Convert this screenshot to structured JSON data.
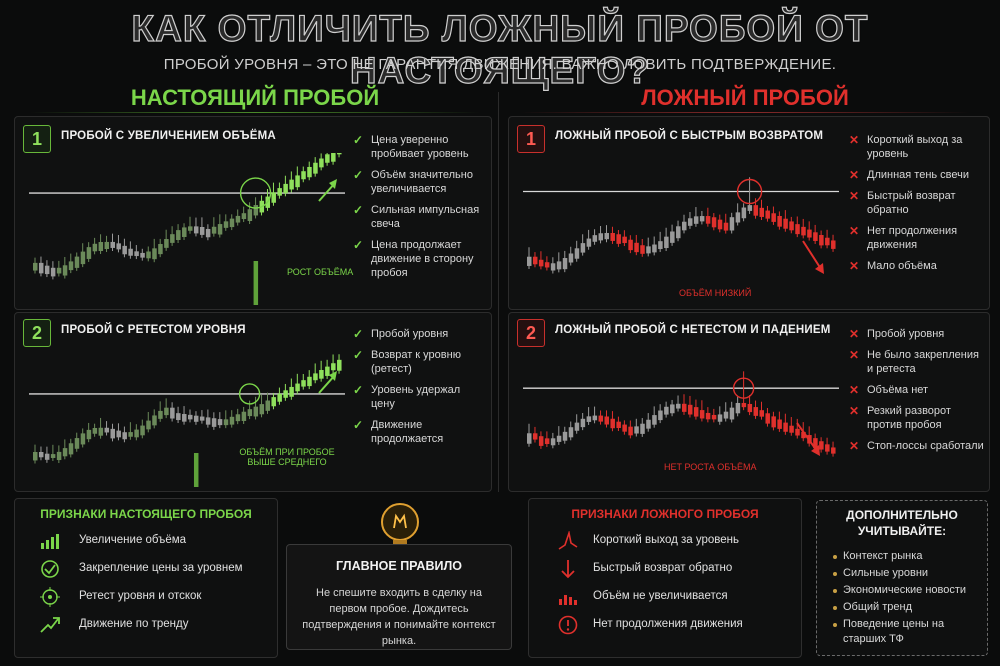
{
  "header": {
    "title": "КАК ОТЛИЧИТЬ ЛОЖНЫЙ ПРОБОЙ ОТ НАСТОЯЩЕГО?",
    "subtitle": "ПРОБОЙ УРОВНЯ – ЭТО НЕ ГАРАНТИЯ ДВИЖЕНИЯ. ВАЖНО ЛОВИТЬ ПОДТВЕРЖДЕНИЕ."
  },
  "true_breakout": {
    "heading": "НАСТОЯЩИЙ ПРОБОЙ",
    "panels": [
      {
        "number": "1",
        "title": "ПРОБОЙ С УВЕЛИЧЕНИЕМ ОБЪЁМА",
        "volume_label": "РОСТ ОБЪЁМА",
        "points": [
          "Цена уверенно пробивает уровень",
          "Объём значительно увеличивается",
          "Сильная импульсная свеча",
          "Цена продолжает движение в сторону пробоя"
        ]
      },
      {
        "number": "2",
        "title": "ПРОБОЙ С РЕТЕСТОМ УРОВНЯ",
        "volume_label": "ОБЪЁМ ПРИ ПРОБОЕ ВЫШЕ СРЕДНЕГО",
        "points": [
          "Пробой уровня",
          "Возврат к уровню (ретест)",
          "Уровень удержал цену",
          "Движение продолжается"
        ]
      }
    ]
  },
  "false_breakout": {
    "heading": "ЛОЖНЫЙ ПРОБОЙ",
    "panels": [
      {
        "number": "1",
        "title": "ЛОЖНЫЙ ПРОБОЙ С БЫСТРЫМ ВОЗВРАТОМ",
        "volume_label": "ОБЪЁМ НИЗКИЙ",
        "points": [
          "Короткий выход за уровень",
          "Длинная тень свечи",
          "Быстрый возврат обратно",
          "Нет продолжения движения",
          "Мало объёма"
        ]
      },
      {
        "number": "2",
        "title": "ЛОЖНЫЙ ПРОБОЙ С НЕТЕСТОМ И ПАДЕНИЕМ",
        "volume_label": "НЕТ РОСТА ОБЪЁМА",
        "points": [
          "Пробой уровня",
          "Не было закрепления и ретеста",
          "Объёма нет",
          "Резкий разворот против пробоя",
          "Стоп-лоссы сработали"
        ]
      }
    ]
  },
  "signs_true": {
    "title": "ПРИЗНАКИ НАСТОЯЩЕГО ПРОБОЯ",
    "items": [
      {
        "icon": "volume-bars-icon",
        "label": "Увеличение объёма"
      },
      {
        "icon": "check-circle-icon",
        "label": "Закрепление цены за уровнем"
      },
      {
        "icon": "target-icon",
        "label": "Ретест уровня и отскок"
      },
      {
        "icon": "trend-arrow-icon",
        "label": "Движение по тренду"
      }
    ]
  },
  "main_rule": {
    "icon": "lightbulb-icon",
    "title": "ГЛАВНОЕ ПРАВИЛО",
    "text": "Не спешите входить в сделку на первом пробое. Дождитесь подтверждения и понимайте контекст рынка."
  },
  "signs_false": {
    "title": "ПРИЗНАКИ ЛОЖНОГО ПРОБОЯ",
    "items": [
      {
        "icon": "spike-icon",
        "label": "Короткий выход за уровень"
      },
      {
        "icon": "down-arrow-icon",
        "label": "Быстрый возврат обратно"
      },
      {
        "icon": "low-volume-icon",
        "label": "Объём не увеличивается"
      },
      {
        "icon": "warning-icon",
        "label": "Нет продолжения движения"
      }
    ]
  },
  "extra": {
    "title": "ДОПОЛНИТЕЛЬНО УЧИТЫВАЙТЕ:",
    "items": [
      "Контекст рынка",
      "Сильные уровни",
      "Экономические новости",
      "Общий тренд",
      "Поведение цены на старших ТФ"
    ]
  },
  "colors": {
    "green": "#7bd64a",
    "red": "#e0302c",
    "gold": "#e0a030"
  }
}
